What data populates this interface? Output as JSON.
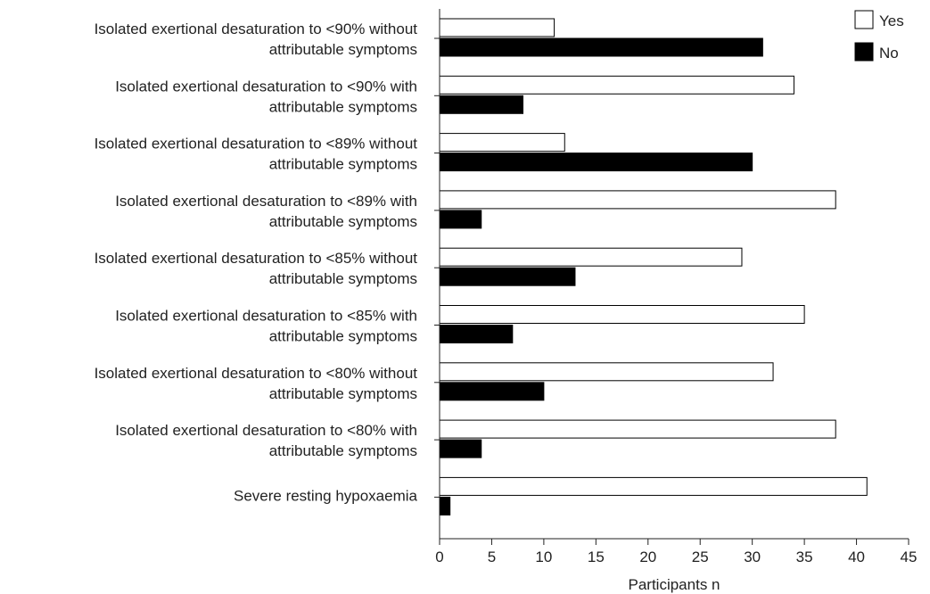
{
  "chart_data": {
    "type": "bar",
    "orientation": "horizontal",
    "categories": [
      [
        "Isolated exertional desaturation to <90% without",
        "attributable symptoms"
      ],
      [
        "Isolated exertional desaturation to <90% with",
        "attributable symptoms"
      ],
      [
        "Isolated exertional desaturation to <89% without",
        "attributable symptoms"
      ],
      [
        "Isolated exertional desaturation to <89% with",
        "attributable symptoms"
      ],
      [
        "Isolated exertional desaturation to <85% without",
        "attributable symptoms"
      ],
      [
        "Isolated exertional desaturation to <85% with",
        "attributable symptoms"
      ],
      [
        "Isolated exertional desaturation to <80% without",
        "attributable symptoms"
      ],
      [
        "Isolated exertional desaturation to <80% with",
        "attributable symptoms"
      ],
      [
        "Severe resting hypoxaemia"
      ]
    ],
    "series": [
      {
        "name": "Yes",
        "color": "#ffffff",
        "values": [
          11,
          34,
          12,
          38,
          29,
          35,
          32,
          38,
          41
        ]
      },
      {
        "name": "No",
        "color": "#000000",
        "values": [
          31,
          8,
          30,
          4,
          13,
          7,
          10,
          4,
          1
        ]
      }
    ],
    "xlabel": "Participants n",
    "xlim": [
      0,
      45
    ],
    "xticks": [
      0,
      5,
      10,
      15,
      20,
      25,
      30,
      35,
      40,
      45
    ],
    "grid": false,
    "legend_position": "top-right"
  }
}
